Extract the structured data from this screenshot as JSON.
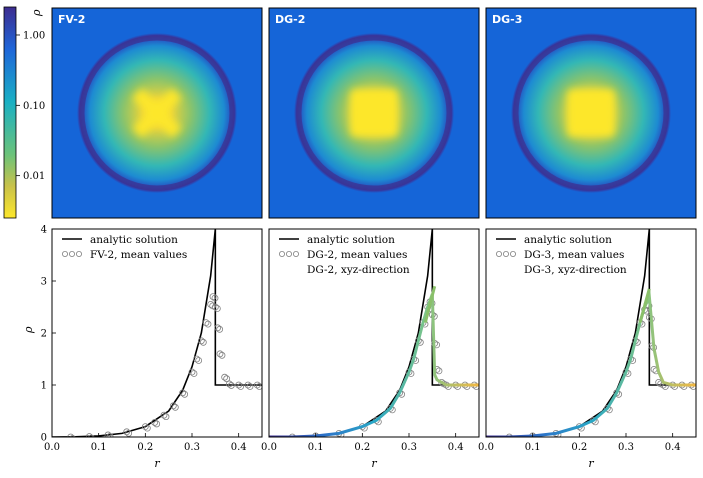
{
  "colorbar": {
    "label": "ρ",
    "ticks": [
      {
        "label": "1.00",
        "value": 1.0
      },
      {
        "label": "0.10",
        "value": 0.1
      },
      {
        "label": "0.01",
        "value": 0.01
      }
    ],
    "range": [
      0.0025,
      2.5
    ]
  },
  "image_panels": [
    {
      "title": "FV-2",
      "center_shape": "cross"
    },
    {
      "title": "DG-2",
      "center_shape": "square"
    },
    {
      "title": "DG-3",
      "center_shape": "square"
    }
  ],
  "chart_data": [
    {
      "type": "line",
      "panel": "FV-2",
      "xlabel": "r",
      "ylabel": "ρ",
      "xlim": [
        0.0,
        0.45
      ],
      "ylim": [
        0,
        4
      ],
      "xticks": [
        "0.0",
        "0.1",
        "0.2",
        "0.3",
        "0.4"
      ],
      "yticks": [
        "0",
        "1",
        "2",
        "3",
        "4"
      ],
      "legend": [
        "analytic solution",
        "FV-2, mean values"
      ],
      "series": [
        {
          "name": "analytic solution",
          "x": [
            0.0,
            0.05,
            0.1,
            0.15,
            0.2,
            0.25,
            0.28,
            0.3,
            0.32,
            0.34,
            0.35,
            0.35,
            0.45
          ],
          "y": [
            0.0,
            0.003,
            0.02,
            0.07,
            0.2,
            0.5,
            0.9,
            1.35,
            2.0,
            3.1,
            4.0,
            1.0,
            1.0
          ]
        },
        {
          "name": "FV-2, mean values",
          "x": [
            0.04,
            0.08,
            0.12,
            0.16,
            0.2,
            0.22,
            0.24,
            0.26,
            0.28,
            0.3,
            0.31,
            0.32,
            0.33,
            0.34,
            0.345,
            0.35,
            0.355,
            0.36,
            0.37,
            0.38,
            0.4,
            0.42,
            0.44
          ],
          "y": [
            0.0,
            0.01,
            0.04,
            0.1,
            0.2,
            0.28,
            0.42,
            0.6,
            0.85,
            1.25,
            1.5,
            1.85,
            2.2,
            2.55,
            2.7,
            2.5,
            2.1,
            1.6,
            1.15,
            1.02,
            1.0,
            1.0,
            1.0
          ]
        }
      ]
    },
    {
      "type": "line",
      "panel": "DG-2",
      "xlabel": "r",
      "ylabel": "",
      "xlim": [
        0.0,
        0.45
      ],
      "ylim": [
        0,
        4
      ],
      "xticks": [
        "0.0",
        "0.1",
        "0.2",
        "0.3",
        "0.4"
      ],
      "yticks": [],
      "legend": [
        "analytic solution",
        "DG-2, mean values",
        "DG-2, xyz-direction"
      ],
      "series": [
        {
          "name": "analytic solution",
          "x": [
            0.0,
            0.05,
            0.1,
            0.15,
            0.2,
            0.25,
            0.28,
            0.3,
            0.32,
            0.34,
            0.35,
            0.35,
            0.45
          ],
          "y": [
            0.0,
            0.003,
            0.02,
            0.07,
            0.2,
            0.5,
            0.9,
            1.35,
            2.0,
            3.1,
            4.0,
            1.0,
            1.0
          ]
        },
        {
          "name": "DG-2, mean values",
          "x": [
            0.05,
            0.1,
            0.15,
            0.2,
            0.23,
            0.26,
            0.28,
            0.3,
            0.31,
            0.32,
            0.33,
            0.34,
            0.345,
            0.35,
            0.355,
            0.36,
            0.37,
            0.38,
            0.4,
            0.42,
            0.44
          ],
          "y": [
            0.0,
            0.02,
            0.07,
            0.2,
            0.32,
            0.55,
            0.85,
            1.25,
            1.5,
            1.85,
            2.2,
            2.5,
            2.6,
            2.35,
            1.8,
            1.3,
            1.05,
            1.0,
            1.0,
            1.0,
            1.0
          ]
        },
        {
          "name": "DG-2, xyz-direction",
          "x": [
            0.0,
            0.05,
            0.1,
            0.15,
            0.2,
            0.23,
            0.26,
            0.28,
            0.3,
            0.31,
            0.32,
            0.33,
            0.34,
            0.35,
            0.355,
            0.36,
            0.37,
            0.38,
            0.4,
            0.45
          ],
          "y": [
            0.0,
            0.0,
            0.02,
            0.07,
            0.2,
            0.32,
            0.55,
            0.85,
            1.25,
            1.5,
            1.85,
            2.2,
            2.5,
            2.75,
            1.2,
            1.1,
            1.05,
            1.0,
            1.0,
            1.0
          ]
        },
        {
          "name": "slope marker",
          "x": [
            0.335,
            0.355
          ],
          "y": [
            2.2,
            2.9
          ]
        }
      ]
    },
    {
      "type": "line",
      "panel": "DG-3",
      "xlabel": "r",
      "ylabel": "",
      "xlim": [
        0.0,
        0.45
      ],
      "ylim": [
        0,
        4
      ],
      "xticks": [
        "0.0",
        "0.1",
        "0.2",
        "0.3",
        "0.4"
      ],
      "yticks": [],
      "legend": [
        "analytic solution",
        "DG-3, mean values",
        "DG-3, xyz-direction"
      ],
      "series": [
        {
          "name": "analytic solution",
          "x": [
            0.0,
            0.05,
            0.1,
            0.15,
            0.2,
            0.25,
            0.28,
            0.3,
            0.32,
            0.34,
            0.35,
            0.35,
            0.45
          ],
          "y": [
            0.0,
            0.003,
            0.02,
            0.07,
            0.2,
            0.5,
            0.9,
            1.35,
            2.0,
            3.1,
            4.0,
            1.0,
            1.0
          ]
        },
        {
          "name": "DG-3, mean values",
          "x": [
            0.05,
            0.1,
            0.15,
            0.2,
            0.23,
            0.26,
            0.28,
            0.3,
            0.31,
            0.32,
            0.33,
            0.34,
            0.345,
            0.35,
            0.355,
            0.36,
            0.37,
            0.38,
            0.4,
            0.42,
            0.44
          ],
          "y": [
            0.0,
            0.02,
            0.07,
            0.2,
            0.32,
            0.55,
            0.85,
            1.25,
            1.5,
            1.85,
            2.2,
            2.45,
            2.55,
            2.3,
            1.75,
            1.3,
            1.05,
            1.0,
            1.0,
            1.0,
            1.0
          ]
        },
        {
          "name": "DG-3, xyz-direction",
          "x": [
            0.0,
            0.05,
            0.1,
            0.15,
            0.2,
            0.23,
            0.26,
            0.28,
            0.3,
            0.31,
            0.32,
            0.33,
            0.34,
            0.35,
            0.36,
            0.37,
            0.38,
            0.4,
            0.45
          ],
          "y": [
            0.0,
            0.0,
            0.02,
            0.07,
            0.2,
            0.32,
            0.55,
            0.85,
            1.25,
            1.5,
            1.85,
            2.2,
            2.5,
            2.7,
            1.7,
            1.25,
            1.05,
            1.0,
            1.0
          ]
        },
        {
          "name": "slope marker",
          "x": [
            0.33,
            0.35
          ],
          "y": [
            2.2,
            2.85
          ]
        }
      ]
    }
  ],
  "colors": {
    "background_field": "#1565d8",
    "ring": "#3a3696",
    "analytic": "#000000",
    "mean_marker": "#808080",
    "xyz_gradient": [
      "#3d2c8f",
      "#2c6fc8",
      "#2aa8c7",
      "#7dc587",
      "#f5b841"
    ],
    "slope_marker": "#8ac06a"
  }
}
